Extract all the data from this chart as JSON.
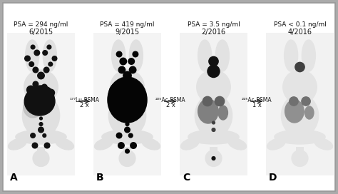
{
  "figsize": [
    4.74,
    2.72
  ],
  "dpi": 100,
  "outer_bg": "#aaaaaa",
  "border_color": "#888888",
  "scan_bg": "#f0f0f0",
  "white_bg": "#ffffff",
  "panels": [
    {
      "label": "A",
      "date": "6/2015",
      "psa": "PSA = 294 ng/ml",
      "seed": 10
    },
    {
      "label": "B",
      "date": "9/2015",
      "psa": "PSA = 419 ng/ml",
      "seed": 20
    },
    {
      "label": "C",
      "date": "2/2016",
      "psa": "PSA = 3.5 ng/ml",
      "seed": 30
    },
    {
      "label": "D",
      "date": "4/2016",
      "psa": "PSA < 0.1 ng/ml",
      "seed": 40
    }
  ],
  "arrows": [
    {
      "line1": "2 x",
      "line2": "¹⁷⁷Lu-PSMA"
    },
    {
      "line1": "2 x",
      "line2": "²²⁵Ac-PSMA"
    },
    {
      "line1": "1 x",
      "line2": "²²⁵Ac-PSMA"
    }
  ],
  "label_fs": 10,
  "date_fs": 7,
  "psa_fs": 6.5,
  "arrow_fs": 6.0
}
